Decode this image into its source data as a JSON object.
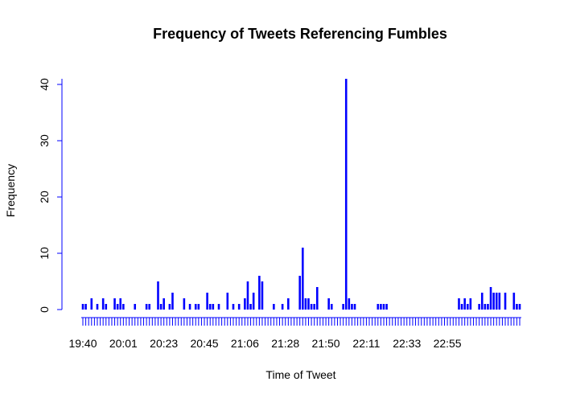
{
  "chart_data": {
    "type": "bar",
    "title": "Frequency of Tweets Referencing Fumbles",
    "xlabel": "Time of Tweet",
    "ylabel": "Frequency",
    "ylim": [
      0,
      41
    ],
    "y_ticks": [
      0,
      10,
      20,
      30,
      40
    ],
    "x_tick_labels": [
      "19:40",
      "20:01",
      "20:23",
      "20:45",
      "21:06",
      "21:28",
      "21:50",
      "22:11",
      "22:33",
      "22:55"
    ],
    "bar_color": "#0000ff",
    "axis_color": "#0000ff",
    "values": [
      1,
      1,
      0,
      2,
      0,
      1,
      0,
      2,
      1,
      0,
      0,
      2,
      1,
      2,
      1,
      0,
      0,
      0,
      1,
      0,
      0,
      0,
      1,
      1,
      0,
      0,
      5,
      1,
      2,
      0,
      1,
      3,
      0,
      0,
      0,
      2,
      0,
      1,
      0,
      1,
      1,
      0,
      0,
      3,
      1,
      1,
      0,
      1,
      0,
      0,
      3,
      0,
      1,
      0,
      1,
      0,
      2,
      5,
      1,
      3,
      0,
      6,
      5,
      0,
      0,
      0,
      1,
      0,
      0,
      1,
      0,
      2,
      0,
      0,
      0,
      6,
      11,
      2,
      2,
      1,
      1,
      4,
      0,
      0,
      0,
      2,
      1,
      0,
      0,
      0,
      1,
      41,
      2,
      1,
      1,
      0,
      0,
      0,
      0,
      0,
      0,
      0,
      1,
      1,
      1,
      1,
      0,
      0,
      0,
      0,
      0,
      0,
      0,
      0,
      0,
      0,
      0,
      0,
      0,
      0,
      0,
      0,
      0,
      0,
      0,
      0,
      0,
      0,
      0,
      0,
      2,
      1,
      2,
      1,
      2,
      0,
      0,
      1,
      3,
      1,
      1,
      4,
      3,
      3,
      3,
      0,
      3,
      0,
      0,
      3,
      1,
      1
    ]
  }
}
